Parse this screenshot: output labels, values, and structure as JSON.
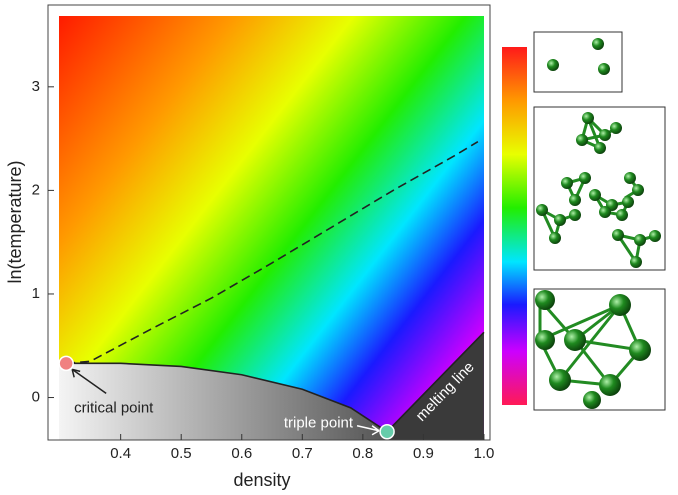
{
  "chart_data": {
    "type": "line",
    "x_label": "density",
    "y_label": "ln(temperature)",
    "xlim": [
      0.28,
      1.01
    ],
    "ylim": [
      -0.41,
      3.79
    ],
    "xticks": [
      0.4,
      0.5,
      0.6,
      0.7,
      0.8,
      0.9,
      {
        "value": 1,
        "label": "1.0"
      }
    ],
    "yticks": [
      0,
      1,
      2,
      3
    ],
    "series": [
      {
        "color": "#222222",
        "style": "dashed",
        "x": [
          0.31,
          0.35,
          0.45,
          0.55,
          0.65,
          0.75,
          0.85,
          0.95,
          0.99
        ],
        "values": [
          0.33,
          0.35,
          0.66,
          0.96,
          1.3,
          1.65,
          2.0,
          2.33,
          2.47
        ]
      },
      {
        "color": "#222222",
        "style": "solid",
        "x": [
          0.31,
          0.4,
          0.5,
          0.6,
          0.7,
          0.78,
          0.84
        ],
        "values": [
          0.33,
          0.33,
          0.3,
          0.22,
          0.08,
          -0.1,
          -0.33
        ]
      },
      {
        "color": "#222222",
        "style": "solid",
        "label": "melting line",
        "x": [
          0.84,
          1.0
        ],
        "values": [
          -0.33,
          0.63
        ]
      }
    ],
    "points": [
      {
        "label": "critical point",
        "x": 0.31,
        "y": 0.33,
        "color": "#f08080"
      },
      {
        "label": "triple point",
        "x": 0.84,
        "y": -0.33,
        "color": "#66ccaa"
      }
    ]
  }
}
